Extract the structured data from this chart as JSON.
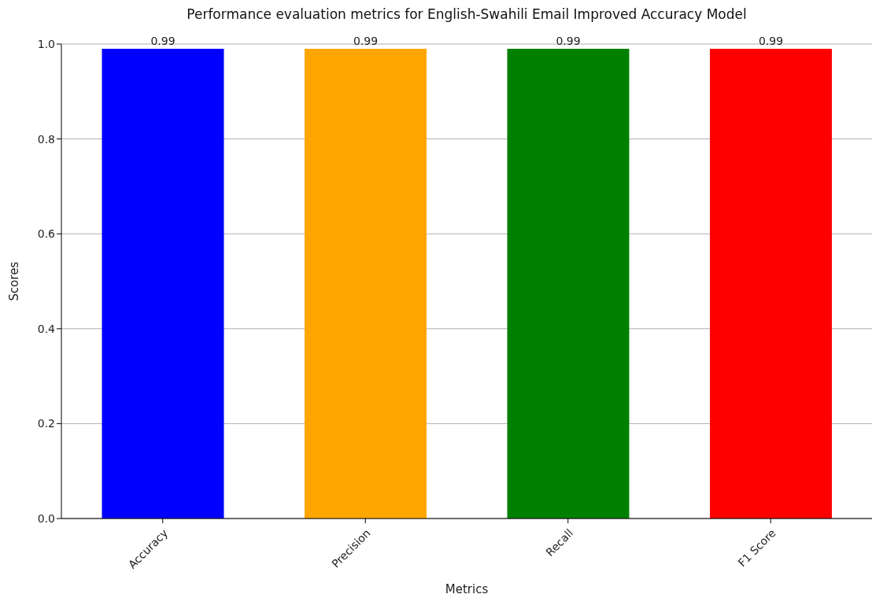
{
  "chart_data": {
    "type": "bar",
    "title": "Performance evaluation metrics for English-Swahili Email Improved Accuracy Model",
    "xlabel": "Metrics",
    "ylabel": "Scores",
    "categories": [
      "Accuracy",
      "Precision",
      "Recall",
      "F1 Score"
    ],
    "values": [
      0.99,
      0.99,
      0.99,
      0.99
    ],
    "colors": [
      "#0000ff",
      "#ffa500",
      "#008000",
      "#ff0000"
    ],
    "ylim": [
      0,
      1
    ],
    "yticks": [
      {
        "value": 0,
        "label": "0.0"
      },
      {
        "value": 0.2,
        "label": "0.2"
      },
      {
        "value": 0.4,
        "label": "0.4"
      },
      {
        "value": 0.6,
        "label": "0.6"
      },
      {
        "value": 0.8,
        "label": "0.8"
      },
      {
        "value": 1,
        "label": "1.0"
      }
    ],
    "grid": "y",
    "data_labels": true
  }
}
